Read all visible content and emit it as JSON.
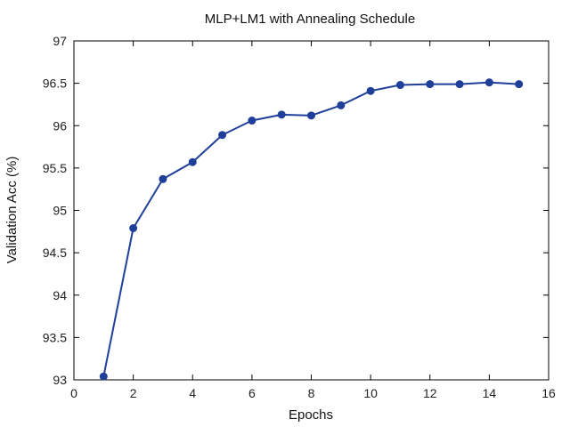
{
  "chart_data": {
    "type": "line",
    "title": "MLP+LM1 with Annealing Schedule",
    "xlabel": "Epochs",
    "ylabel": "Validation Acc (%)",
    "xlim": [
      0,
      16
    ],
    "ylim": [
      93,
      97
    ],
    "xticks": [
      0,
      2,
      4,
      6,
      8,
      10,
      12,
      14,
      16
    ],
    "yticks": [
      93,
      93.5,
      94,
      94.5,
      95,
      95.5,
      96,
      96.5,
      97
    ],
    "grid": false,
    "legend": "none",
    "series": [
      {
        "color": "#1f3f99",
        "marker": "circle",
        "x": [
          1,
          2,
          3,
          4,
          5,
          6,
          7,
          8,
          9,
          10,
          11,
          12,
          13,
          14,
          15
        ],
        "y": [
          93.04,
          94.79,
          95.37,
          95.57,
          95.89,
          96.06,
          96.13,
          96.12,
          96.24,
          96.41,
          96.48,
          96.49,
          96.49,
          96.51,
          96.49
        ]
      }
    ]
  }
}
